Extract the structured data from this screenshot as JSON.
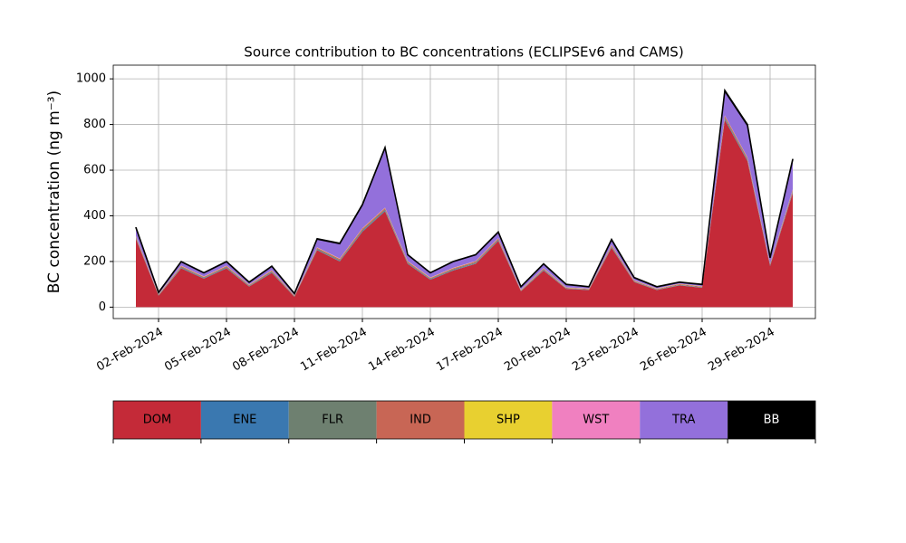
{
  "chart_data": {
    "type": "stacked_area",
    "title": "Source contribution to BC concentrations (ECLIPSEv6 and CAMS)",
    "y_label": "BC concentration (ng m⁻³)",
    "x": [
      "2024-02-01",
      "2024-02-02",
      "2024-02-03",
      "2024-02-04",
      "2024-02-05",
      "2024-02-06",
      "2024-02-07",
      "2024-02-08",
      "2024-02-09",
      "2024-02-10",
      "2024-02-11",
      "2024-02-12",
      "2024-02-13",
      "2024-02-14",
      "2024-02-15",
      "2024-02-16",
      "2024-02-17",
      "2024-02-18",
      "2024-02-19",
      "2024-02-20",
      "2024-02-21",
      "2024-02-22",
      "2024-02-23",
      "2024-02-24",
      "2024-02-25",
      "2024-02-26",
      "2024-02-27",
      "2024-02-28",
      "2024-02-29",
      "2024-03-01"
    ],
    "series": [
      {
        "name": "DOM",
        "color": "#c42a38",
        "values": [
          300,
          50,
          170,
          125,
          170,
          90,
          150,
          45,
          250,
          200,
          330,
          420,
          190,
          120,
          160,
          190,
          290,
          70,
          160,
          80,
          75,
          260,
          110,
          75,
          95,
          85,
          820,
          640,
          180,
          500
        ]
      },
      {
        "name": "ENE",
        "color": "#3a78b0",
        "values": [
          2,
          1,
          2,
          2,
          2,
          1,
          2,
          1,
          2,
          2,
          3,
          3,
          2,
          2,
          2,
          2,
          2,
          1,
          2,
          1,
          1,
          2,
          1,
          1,
          1,
          1,
          4,
          3,
          2,
          3
        ]
      },
      {
        "name": "FLR",
        "color": "#6e8070",
        "values": [
          4,
          2,
          4,
          3,
          4,
          3,
          4,
          2,
          4,
          4,
          5,
          5,
          4,
          3,
          4,
          4,
          4,
          2,
          3,
          2,
          2,
          4,
          2,
          2,
          2,
          2,
          6,
          5,
          3,
          5
        ]
      },
      {
        "name": "IND",
        "color": "#c86655",
        "values": [
          4,
          2,
          4,
          3,
          4,
          3,
          4,
          2,
          4,
          5,
          6,
          6,
          4,
          3,
          4,
          4,
          5,
          2,
          4,
          2,
          2,
          5,
          3,
          2,
          3,
          2,
          8,
          6,
          4,
          6
        ]
      },
      {
        "name": "SHP",
        "color": "#e8d030",
        "values": [
          1,
          1,
          1,
          1,
          1,
          1,
          1,
          1,
          1,
          1,
          1,
          1,
          1,
          1,
          1,
          1,
          1,
          1,
          1,
          1,
          1,
          1,
          1,
          1,
          1,
          1,
          1,
          1,
          1,
          1
        ]
      },
      {
        "name": "WST",
        "color": "#f080c0",
        "values": [
          1,
          1,
          1,
          1,
          1,
          1,
          1,
          1,
          1,
          1,
          1,
          1,
          1,
          1,
          1,
          1,
          1,
          1,
          1,
          1,
          1,
          1,
          1,
          1,
          1,
          1,
          1,
          1,
          1,
          1
        ]
      },
      {
        "name": "TRA",
        "color": "#9370db",
        "values": [
          36,
          7,
          17,
          15,
          17,
          10,
          17,
          7,
          36,
          65,
          102,
          262,
          27,
          20,
          27,
          27,
          25,
          12,
          18,
          12,
          7,
          22,
          11,
          7,
          6,
          7,
          106,
          140,
          25,
          130
        ]
      },
      {
        "name": "BB",
        "color": "#000000",
        "values": [
          2,
          1,
          1,
          1,
          1,
          1,
          1,
          1,
          2,
          2,
          2,
          2,
          1,
          1,
          1,
          1,
          2,
          1,
          1,
          1,
          1,
          2,
          1,
          1,
          1,
          1,
          4,
          4,
          2,
          3
        ]
      }
    ],
    "xlim": [
      "2024-01-31",
      "2024-03-02"
    ],
    "xticks": [
      {
        "value": "2024-02-02",
        "label": "02-Feb-2024"
      },
      {
        "value": "2024-02-05",
        "label": "05-Feb-2024"
      },
      {
        "value": "2024-02-08",
        "label": "08-Feb-2024"
      },
      {
        "value": "2024-02-11",
        "label": "11-Feb-2024"
      },
      {
        "value": "2024-02-14",
        "label": "14-Feb-2024"
      },
      {
        "value": "2024-02-17",
        "label": "17-Feb-2024"
      },
      {
        "value": "2024-02-20",
        "label": "20-Feb-2024"
      },
      {
        "value": "2024-02-23",
        "label": "23-Feb-2024"
      },
      {
        "value": "2024-02-26",
        "label": "26-Feb-2024"
      },
      {
        "value": "2024-02-29",
        "label": "29-Feb-2024"
      }
    ],
    "ylim": [
      -50,
      1060
    ],
    "yticks": [
      0,
      200,
      400,
      600,
      800,
      1000
    ],
    "grid": true
  }
}
